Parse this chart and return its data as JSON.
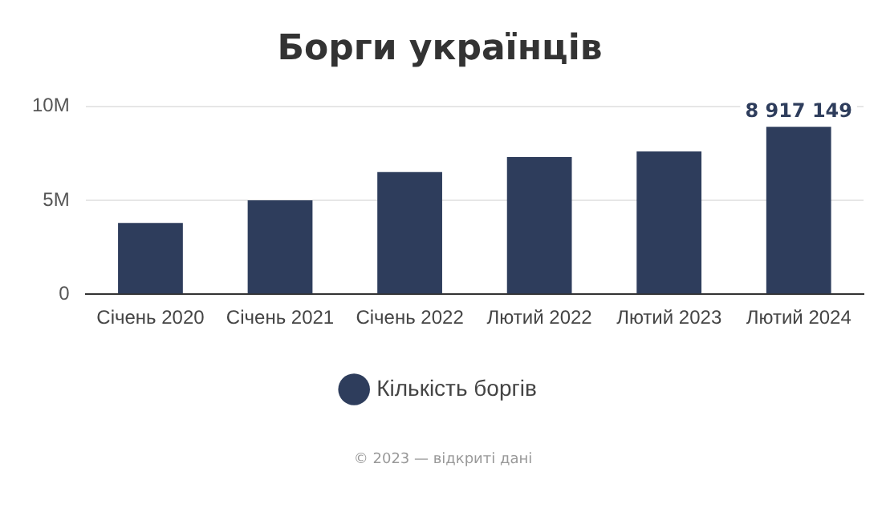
{
  "chart_data": {
    "type": "bar",
    "title": "Борги українців",
    "categories": [
      "Січень 2020",
      "Січень 2021",
      "Січень 2022",
      "Лютий 2022",
      "Лютий 2023",
      "Лютий 2024"
    ],
    "series": [
      {
        "name": "Кількість боргів",
        "color": "#2e3d5c",
        "values": [
          3800000,
          5000000,
          6500000,
          7300000,
          7600000,
          8917149
        ],
        "value_labels": [
          null,
          null,
          null,
          null,
          null,
          "8 917 149"
        ]
      }
    ],
    "ylim": [
      0,
      10000000
    ],
    "yticks": [
      {
        "value": 0,
        "label": "0"
      },
      {
        "value": 5000000,
        "label": "5M"
      },
      {
        "value": 10000000,
        "label": "10M"
      }
    ],
    "grid": "y",
    "legend": "bottom",
    "annotations": [
      "© 2023 — відкриті дані"
    ]
  }
}
